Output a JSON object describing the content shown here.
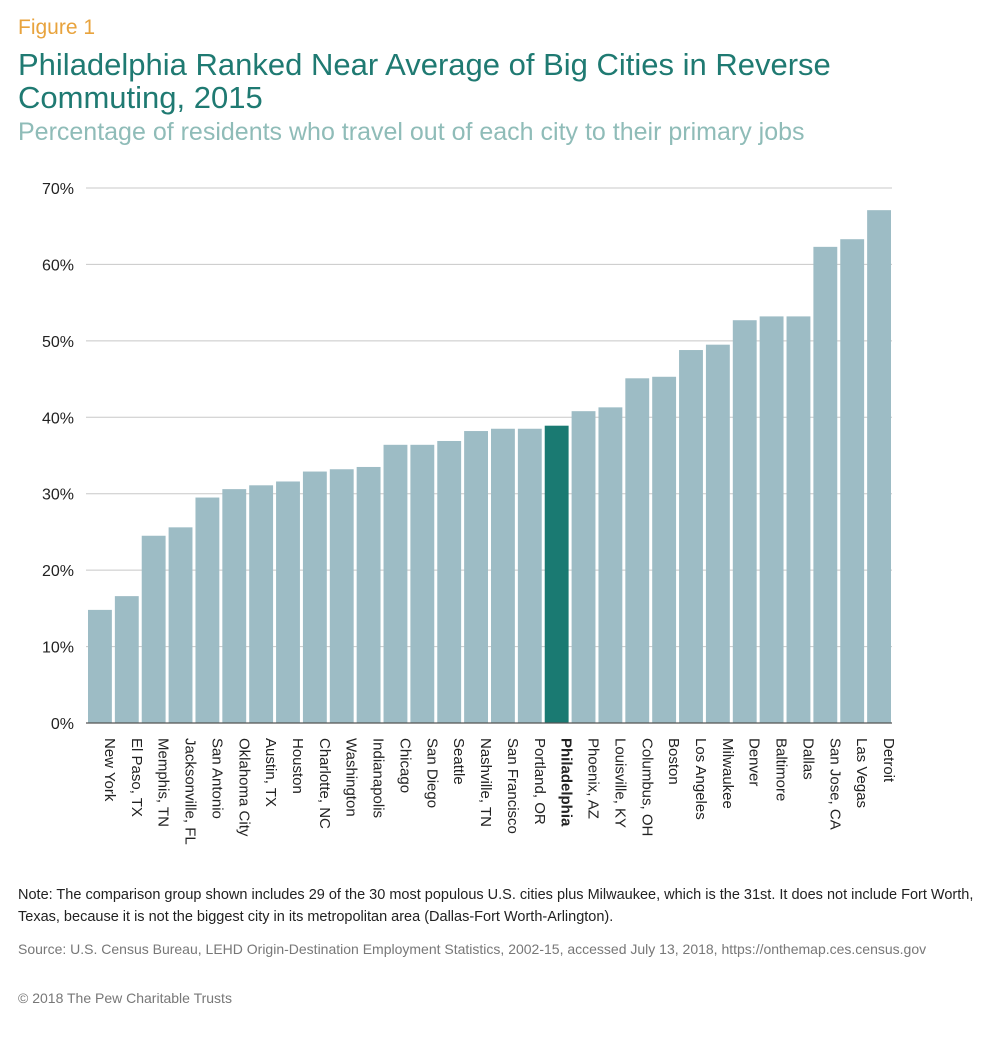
{
  "figure_label": "Figure 1",
  "note": "Note: The comparison group shown includes 29 of the 30 most populous U.S. cities plus Milwaukee, which is the 31st. It does not include Fort Worth, Texas, because it is not the biggest city in its metropolitan area (Dallas-Fort Worth-Arlington).",
  "source": "Source: U.S. Census Bureau, LEHD Origin-Destination Employment Statistics, 2002-15, accessed July 13, 2018, https://onthemap.ces.census.gov",
  "copyright": "© 2018 The Pew Charitable Trusts",
  "colors": {
    "bar": "#9dbcc5",
    "highlight": "#1a7a72",
    "grid": "#c8c8c8",
    "axis": "#555555"
  },
  "chart_data": {
    "type": "bar",
    "title": "Philadelphia Ranked Near Average of Big Cities in Reverse Commuting, 2015",
    "subtitle": "Percentage of residents who travel out of each city to their primary jobs",
    "xlabel": "",
    "ylabel": "",
    "ylim": [
      0,
      70
    ],
    "yticks": [
      "0%",
      "10%",
      "20%",
      "30%",
      "40%",
      "50%",
      "60%",
      "70%"
    ],
    "grid": true,
    "highlight": "Philadelphia",
    "categories": [
      "New York",
      "El Paso, TX",
      "Memphis, TN",
      "Jacksonville, FL",
      "San Antonio",
      "Oklahoma City",
      "Austin, TX",
      "Houston",
      "Charlotte, NC",
      "Washington",
      "Indianapolis",
      "Chicago",
      "San Diego",
      "Seattle",
      "Nashville, TN",
      "San Francisco",
      "Portland, OR",
      "Philadelphia",
      "Phoenix, AZ",
      "Louisville, KY",
      "Columbus, OH",
      "Boston",
      "Los Angeles",
      "Milwaukee",
      "Denver",
      "Baltimore",
      "Dallas",
      "San Jose, CA",
      "Las Vegas",
      "Detroit"
    ],
    "values": [
      14.8,
      16.6,
      24.5,
      25.6,
      29.5,
      30.6,
      31.1,
      31.6,
      32.9,
      33.2,
      33.5,
      36.4,
      36.4,
      36.9,
      38.2,
      38.5,
      38.5,
      38.9,
      40.8,
      41.3,
      45.1,
      45.3,
      48.8,
      49.5,
      52.7,
      53.2,
      53.2,
      62.3,
      63.3,
      67.1
    ]
  }
}
